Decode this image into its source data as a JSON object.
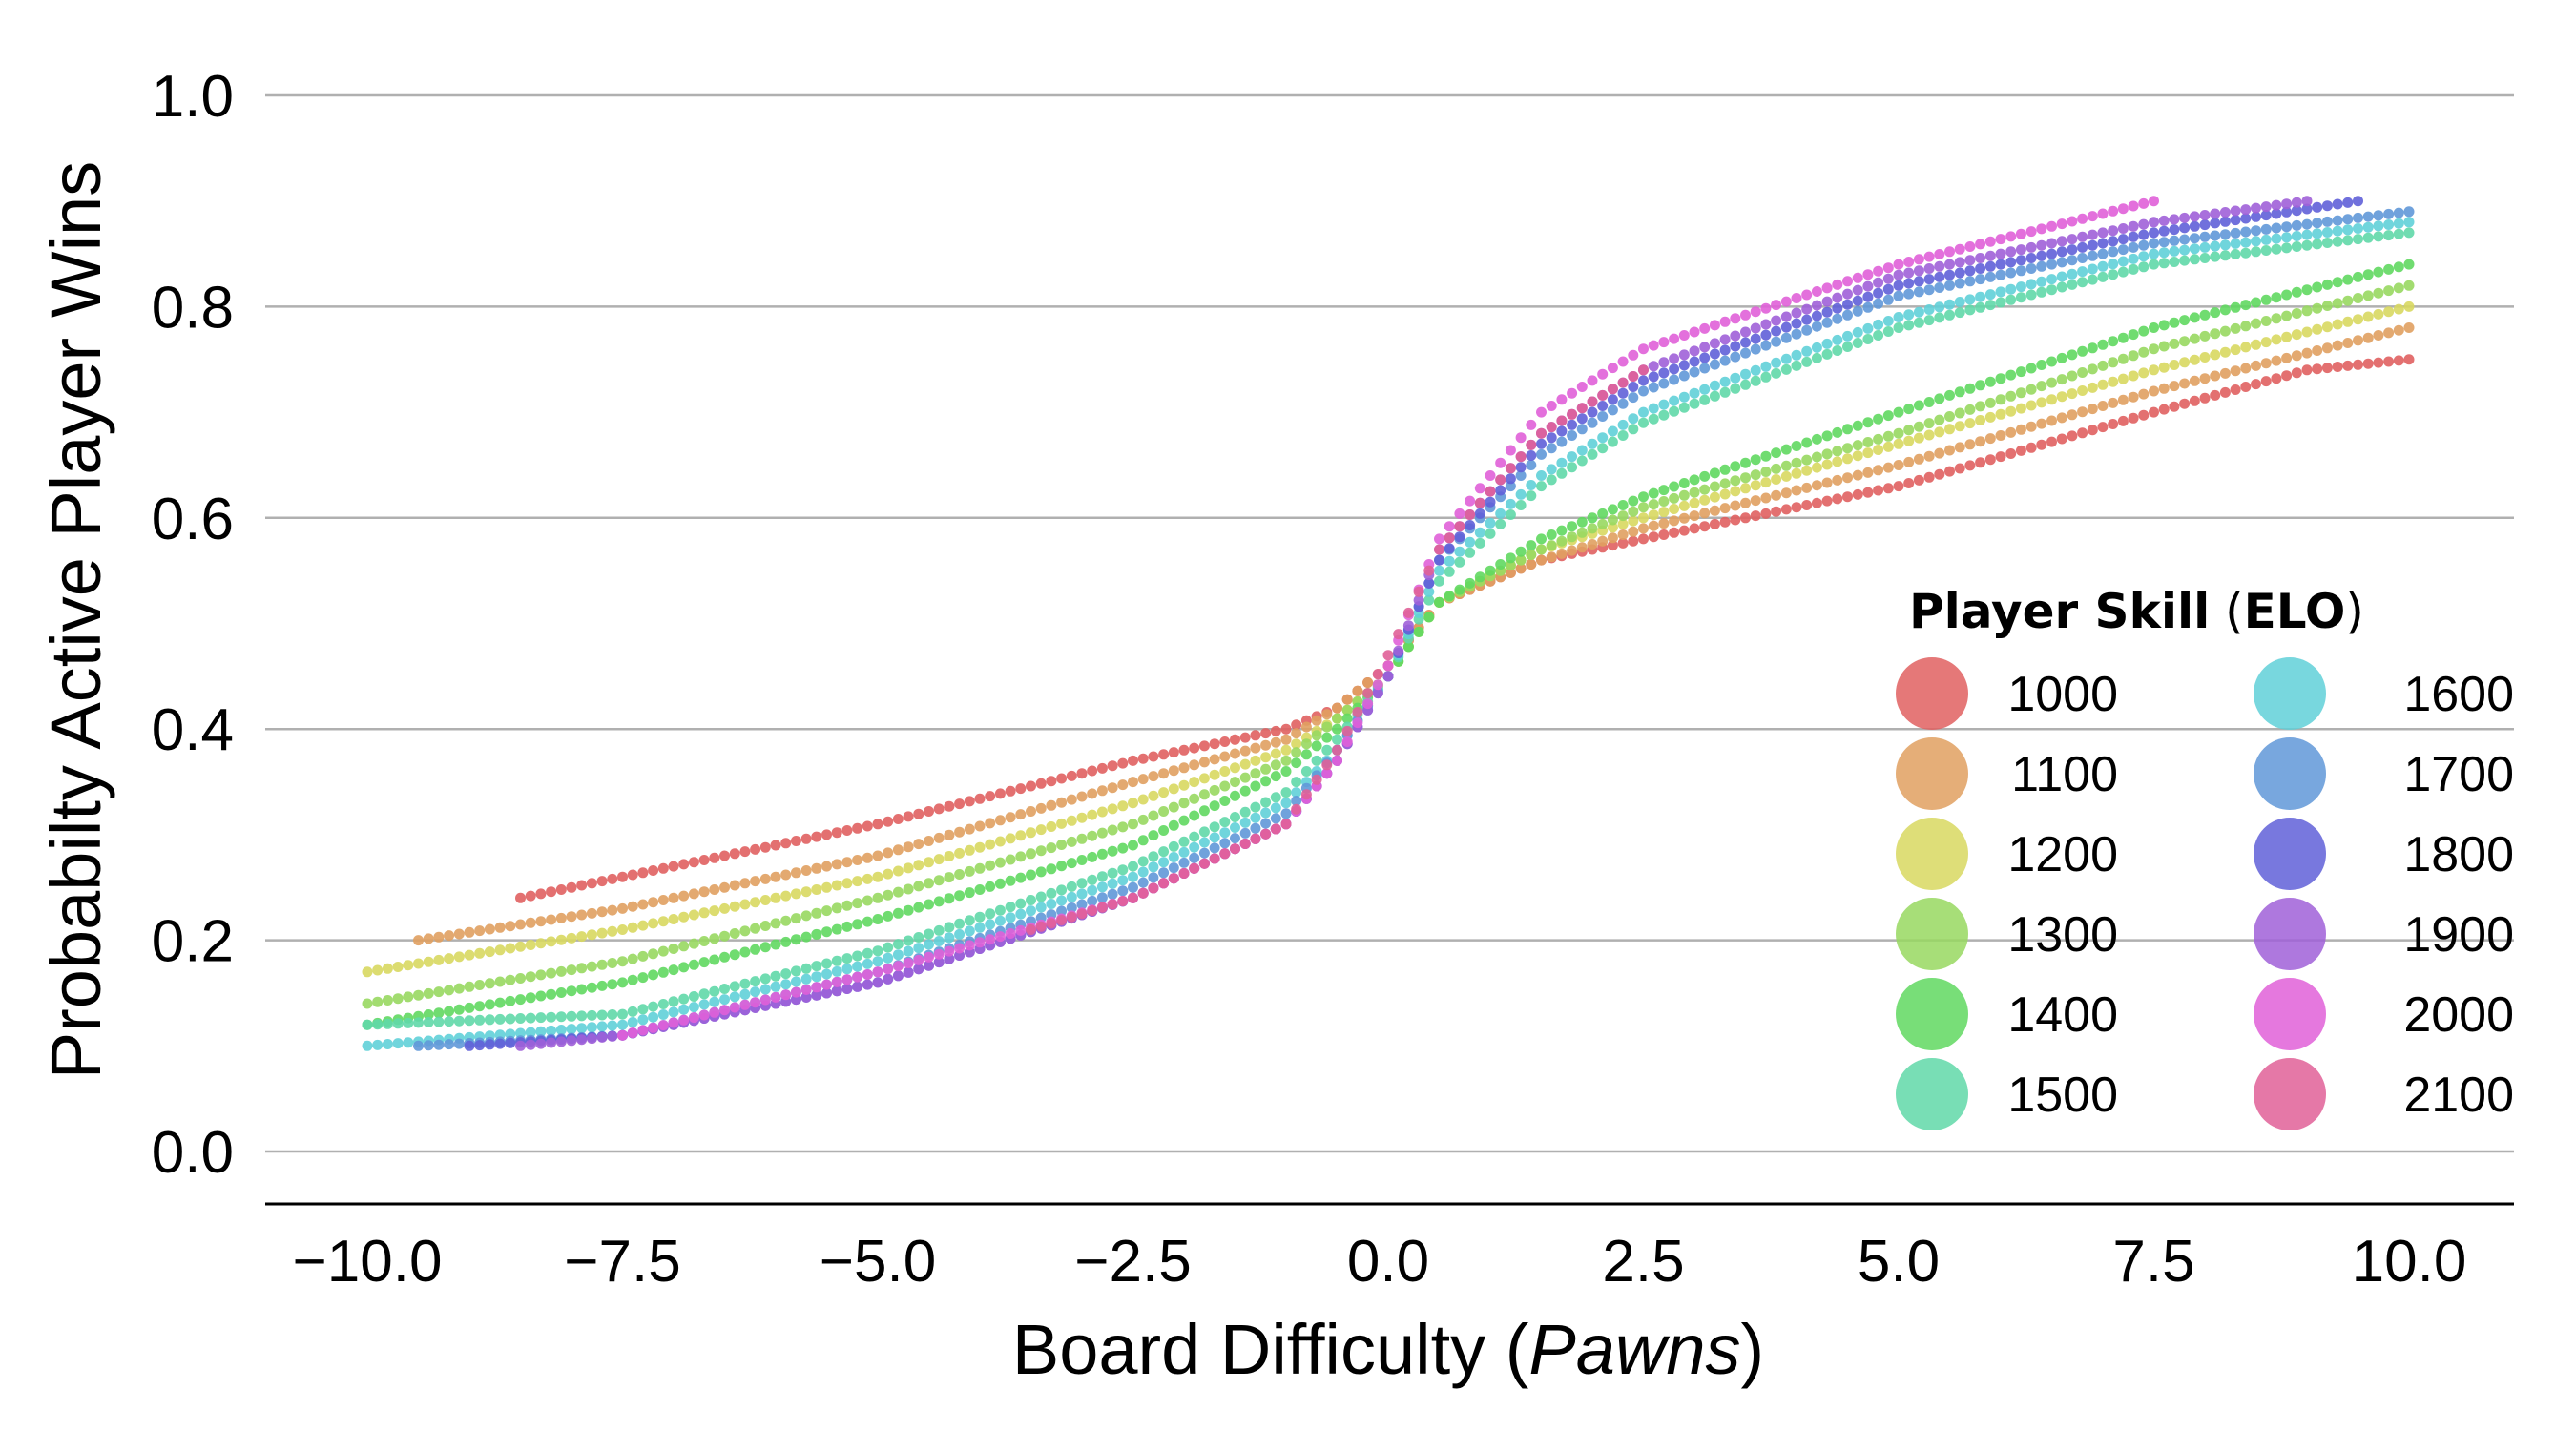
{
  "chart_data": {
    "type": "scatter",
    "xlabel": "Board Difficulty (",
    "xlabel_italic": "Pawns",
    "xlabel_close": ")",
    "ylabel": "Probabilty Active Player Wins",
    "xlim": [
      -10.5,
      11.0
    ],
    "ylim": [
      -0.05,
      1.05
    ],
    "xticks": [
      -10.0,
      -7.5,
      -5.0,
      -2.5,
      0.0,
      2.5,
      5.0,
      7.5,
      10.0
    ],
    "xtick_labels": [
      "−10.0",
      "−7.5",
      "−5.0",
      "−2.5",
      "0.0",
      "2.5",
      "5.0",
      "7.5",
      "10.0"
    ],
    "yticks": [
      0.0,
      0.2,
      0.4,
      0.6,
      0.8,
      1.0
    ],
    "ytick_labels": [
      "0.0",
      "0.2",
      "0.4",
      "0.6",
      "0.8",
      "1.0"
    ],
    "grid": "horizontal",
    "legend": {
      "title_bold": "Player Skill",
      "title_open": " (",
      "title_bold2": "ELO",
      "title_close": ")",
      "placement": "lower-right",
      "columns": 2
    },
    "series": [
      {
        "name": "1000",
        "color": "#e06060",
        "x": [
          -8.5,
          -7.5,
          -5.0,
          -2.5,
          -1.0,
          -0.5,
          0.0,
          0.5,
          1.5,
          2.5,
          5.0,
          7.5,
          9.0,
          10.0
        ],
        "y": [
          0.24,
          0.26,
          0.31,
          0.37,
          0.4,
          0.42,
          0.46,
          0.52,
          0.56,
          0.58,
          0.63,
          0.7,
          0.74,
          0.75
        ]
      },
      {
        "name": "1100",
        "color": "#e0a060",
        "x": [
          -9.5,
          -7.5,
          -5.0,
          -2.5,
          -1.0,
          -0.5,
          0.0,
          0.5,
          1.5,
          2.5,
          5.0,
          7.5,
          10.0
        ],
        "y": [
          0.2,
          0.23,
          0.28,
          0.35,
          0.39,
          0.42,
          0.46,
          0.52,
          0.56,
          0.59,
          0.65,
          0.72,
          0.78
        ]
      },
      {
        "name": "1200",
        "color": "#d8d860",
        "x": [
          -10.0,
          -7.5,
          -5.0,
          -2.5,
          -1.0,
          -0.5,
          0.0,
          0.5,
          1.5,
          2.5,
          5.0,
          7.5,
          10.0
        ],
        "y": [
          0.17,
          0.21,
          0.26,
          0.33,
          0.38,
          0.41,
          0.45,
          0.52,
          0.57,
          0.6,
          0.67,
          0.74,
          0.8
        ]
      },
      {
        "name": "1300",
        "color": "#98d860",
        "x": [
          -10.0,
          -7.5,
          -5.0,
          -2.5,
          -1.0,
          -0.5,
          0.0,
          0.5,
          1.5,
          2.5,
          5.0,
          7.5,
          10.0
        ],
        "y": [
          0.14,
          0.18,
          0.24,
          0.31,
          0.37,
          0.41,
          0.45,
          0.52,
          0.57,
          0.61,
          0.68,
          0.76,
          0.82
        ]
      },
      {
        "name": "1400",
        "color": "#60d860",
        "x": [
          -10.0,
          -7.5,
          -5.0,
          -2.5,
          -1.0,
          -0.5,
          0.0,
          0.5,
          1.5,
          2.5,
          5.0,
          7.5,
          10.0
        ],
        "y": [
          0.12,
          0.16,
          0.22,
          0.29,
          0.36,
          0.4,
          0.45,
          0.52,
          0.58,
          0.62,
          0.7,
          0.78,
          0.84
        ]
      },
      {
        "name": "1500",
        "color": "#60d8a8",
        "x": [
          -10.0,
          -7.5,
          -5.0,
          -2.5,
          -1.0,
          -0.5,
          0.0,
          0.5,
          1.5,
          2.5,
          5.0,
          7.5,
          10.0
        ],
        "y": [
          0.12,
          0.13,
          0.19,
          0.27,
          0.34,
          0.39,
          0.45,
          0.54,
          0.63,
          0.69,
          0.78,
          0.84,
          0.87
        ]
      },
      {
        "name": "1600",
        "color": "#60d0d8",
        "x": [
          -10.0,
          -7.5,
          -5.0,
          -2.5,
          -1.0,
          -0.5,
          0.0,
          0.5,
          1.5,
          2.5,
          5.0,
          7.5,
          10.0
        ],
        "y": [
          0.1,
          0.12,
          0.18,
          0.26,
          0.33,
          0.38,
          0.45,
          0.55,
          0.64,
          0.7,
          0.79,
          0.85,
          0.88
        ]
      },
      {
        "name": "1700",
        "color": "#6098d8",
        "x": [
          -9.5,
          -7.5,
          -5.0,
          -2.5,
          -1.0,
          -0.5,
          0.0,
          0.5,
          1.5,
          2.5,
          5.0,
          7.5,
          10.0
        ],
        "y": [
          0.1,
          0.11,
          0.17,
          0.25,
          0.32,
          0.38,
          0.45,
          0.56,
          0.66,
          0.72,
          0.81,
          0.86,
          0.89
        ]
      },
      {
        "name": "1800",
        "color": "#6060d8",
        "x": [
          -9.0,
          -7.5,
          -5.0,
          -2.5,
          -1.0,
          -0.5,
          0.0,
          0.5,
          1.5,
          2.5,
          5.0,
          7.5,
          9.5
        ],
        "y": [
          0.1,
          0.11,
          0.16,
          0.24,
          0.31,
          0.37,
          0.45,
          0.56,
          0.67,
          0.73,
          0.82,
          0.87,
          0.9
        ]
      },
      {
        "name": "1900",
        "color": "#a060d8",
        "x": [
          -8.5,
          -7.5,
          -5.0,
          -2.5,
          -1.0,
          -0.5,
          0.0,
          0.5,
          1.5,
          2.5,
          5.0,
          7.5,
          9.0
        ],
        "y": [
          0.1,
          0.11,
          0.16,
          0.24,
          0.31,
          0.37,
          0.45,
          0.57,
          0.68,
          0.74,
          0.83,
          0.88,
          0.9
        ]
      },
      {
        "name": "2000",
        "color": "#e060d8",
        "x": [
          -7.5,
          -5.0,
          -2.5,
          -1.0,
          -0.5,
          0.0,
          0.5,
          1.5,
          2.5,
          5.0,
          7.5
        ],
        "y": [
          0.11,
          0.17,
          0.24,
          0.31,
          0.37,
          0.46,
          0.58,
          0.7,
          0.76,
          0.84,
          0.9
        ]
      },
      {
        "name": "2100",
        "color": "#e06098",
        "x": [
          -3.5,
          -2.5,
          -1.0,
          -0.5,
          0.0,
          0.5,
          1.5,
          2.5
        ],
        "y": [
          0.21,
          0.24,
          0.31,
          0.38,
          0.47,
          0.57,
          0.68,
          0.74
        ]
      }
    ]
  }
}
